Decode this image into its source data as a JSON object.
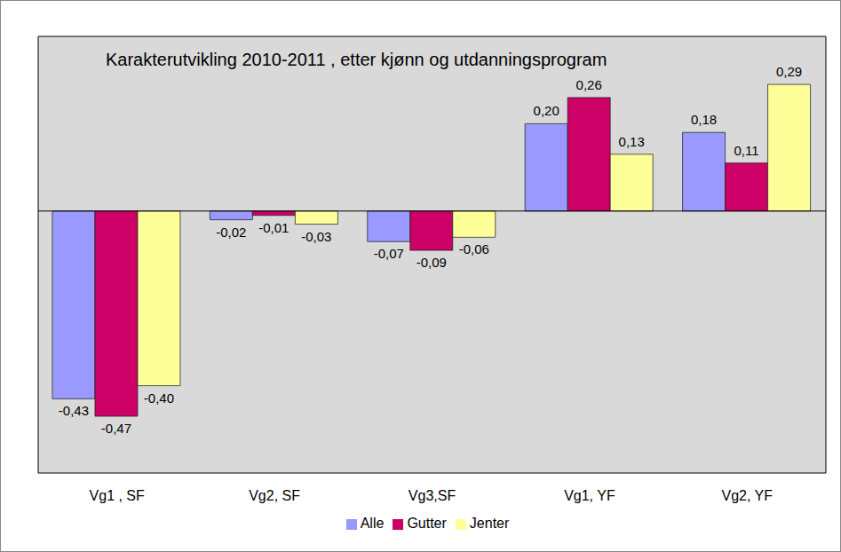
{
  "chart_data": {
    "type": "bar",
    "title": "Karakterutvikling 2010-2011 , etter kjønn og utdanningsprogram",
    "categories": [
      "Vg1 , SF",
      "Vg2, SF",
      "Vg3,SF",
      "Vg1, YF",
      "Vg2, YF"
    ],
    "series": [
      {
        "name": "Alle",
        "color": "#9999ff",
        "values": [
          -0.43,
          -0.02,
          -0.07,
          0.2,
          0.18
        ],
        "value_labels": [
          "-0,43",
          "-0,02",
          "-0,07",
          "0,20",
          "0,18"
        ]
      },
      {
        "name": "Gutter",
        "color": "#cc0066",
        "values": [
          -0.47,
          -0.01,
          -0.09,
          0.26,
          0.11
        ],
        "value_labels": [
          "-0,47",
          "-0,01",
          "-0,09",
          "0,26",
          "0,11"
        ]
      },
      {
        "name": "Jenter",
        "color": "#ffff99",
        "values": [
          -0.4,
          -0.03,
          -0.06,
          0.13,
          0.29
        ],
        "value_labels": [
          "-0,40",
          "-0,03",
          "-0,06",
          "0,13",
          "0,29"
        ]
      }
    ],
    "ylim": [
      -0.6,
      0.4
    ],
    "data_labels": true,
    "legend": "bottom",
    "tick_labels": "x",
    "grid": false
  }
}
